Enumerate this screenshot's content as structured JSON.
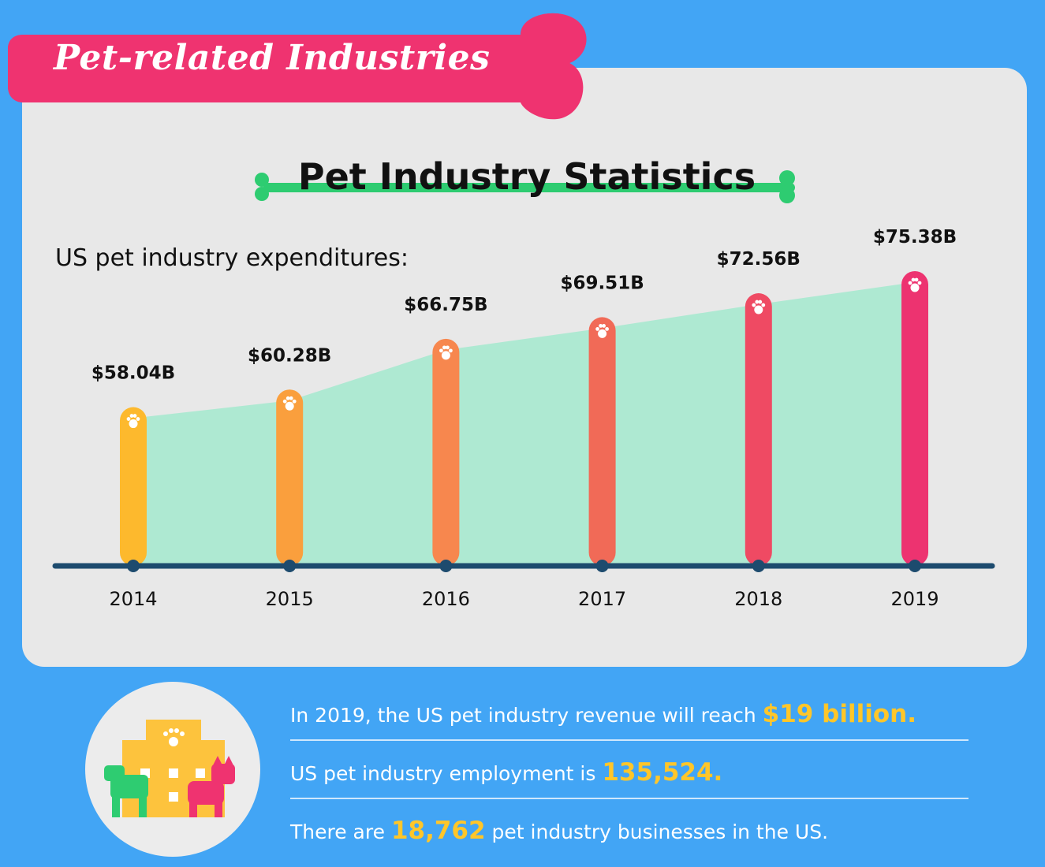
{
  "banner": {
    "title": "Pet-related Industries"
  },
  "heading": {
    "title": "Pet Industry Statistics"
  },
  "subtitle": "US pet industry expenditures:",
  "chart_data": {
    "type": "bar",
    "categories": [
      "2014",
      "2015",
      "2016",
      "2017",
      "2018",
      "2019"
    ],
    "values": [
      58.04,
      60.28,
      66.75,
      69.51,
      72.56,
      75.38
    ],
    "value_labels": [
      "$58.04B",
      "$60.28B",
      "$66.75B",
      "$69.51B",
      "$72.56B",
      "$75.38B"
    ],
    "title": "Pet Industry Statistics",
    "subtitle": "US pet industry expenditures:",
    "ylim": [
      38,
      80
    ],
    "colors": [
      "#fdb92d",
      "#fa9f3d",
      "#f7874e",
      "#f16a57",
      "#ef4a63",
      "#ed3370"
    ],
    "area_color": "#aee9d2",
    "baseline_color": "#1d4b6e",
    "grid": false,
    "legend": "none"
  },
  "facts": [
    {
      "before": "In 2019, the US pet industry revenue will reach ",
      "highlight": "$19 billion.",
      "after": ""
    },
    {
      "before": "US pet industry employment is ",
      "highlight": "135,524.",
      "after": ""
    },
    {
      "before": "There are ",
      "highlight": "18,762",
      "after": " pet industry businesses in the US."
    }
  ],
  "colors": {
    "background": "#42a5f5",
    "card": "#e8e8e8",
    "banner": "#ef3370",
    "heading_bone": "#2ecc71",
    "highlight": "#ffc629"
  },
  "icons": [
    "bone-banner",
    "bone-underline",
    "paw-icon",
    "pet-building-icon",
    "dog-icon",
    "cat-icon"
  ]
}
